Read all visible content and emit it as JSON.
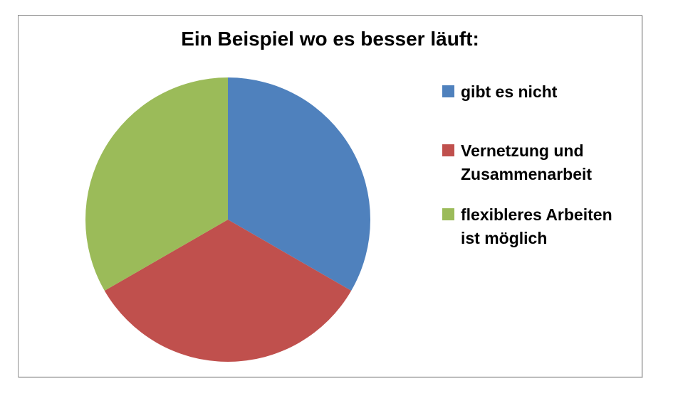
{
  "chart_data": {
    "type": "pie",
    "title": "Ein Beispiel wo es besser läuft:",
    "categories": [
      "gibt es nicht",
      "Vernetzung und Zusammenarbeit",
      "flexibleres Arbeiten ist möglich"
    ],
    "values": [
      1,
      1,
      1
    ],
    "slices": [
      {
        "label": "gibt es nicht",
        "value": 1,
        "color": "#4F81BD"
      },
      {
        "label": "Vernetzung und Zusammenarbeit",
        "value": 1,
        "color": "#C0504D"
      },
      {
        "label": "flexibleres Arbeiten ist möglich",
        "value": 1,
        "color": "#9BBB59"
      }
    ],
    "start_angle_deg": 0,
    "direction": "clockwise",
    "legend_position": "right",
    "legend": [
      {
        "label": "gibt es nicht",
        "display": "gibt es nicht",
        "color": "#4F81BD"
      },
      {
        "label": "Vernetzung und Zusammenarbeit",
        "display": "Vernetzung und\nZusammenarbeit",
        "color": "#C0504D"
      },
      {
        "label": "flexibleres Arbeiten ist möglich",
        "display": "flexibleres Arbeiten\nist möglich",
        "color": "#9BBB59"
      }
    ]
  }
}
